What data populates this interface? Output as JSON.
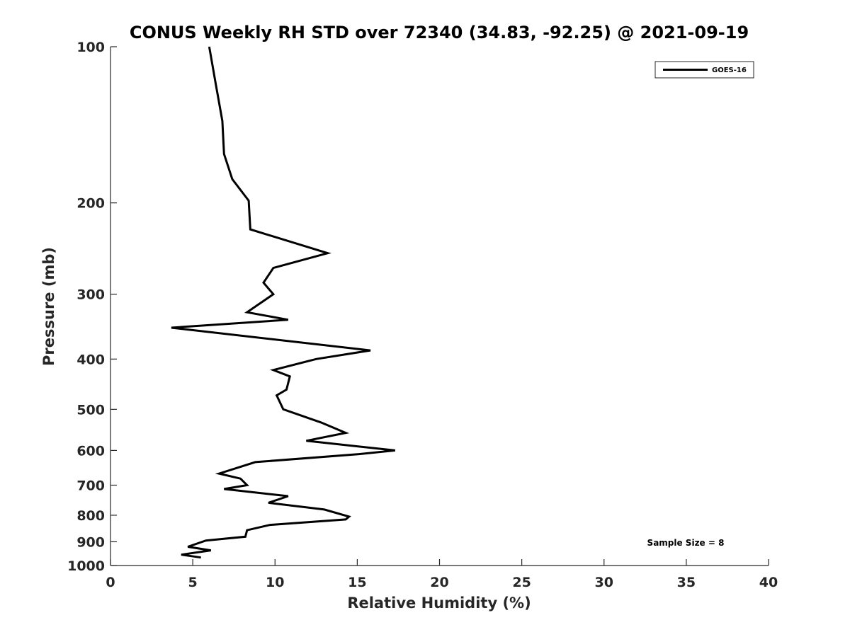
{
  "chart_data": {
    "type": "line",
    "title": "CONUS Weekly RH STD over 72340 (34.83, -92.25) @ 2021-09-19",
    "xlabel": "Relative Humidity (%)",
    "ylabel": "Pressure (mb)",
    "xlim": [
      0,
      40
    ],
    "ylim": [
      100,
      1000
    ],
    "y_scale": "log",
    "y_reversed": true,
    "grid": false,
    "x_ticks": [
      0,
      5,
      10,
      15,
      20,
      25,
      30,
      35,
      40
    ],
    "y_ticks": [
      100,
      200,
      300,
      400,
      500,
      600,
      700,
      800,
      900,
      1000
    ],
    "legend": {
      "position": "top-right",
      "entries": [
        "GOES-16"
      ]
    },
    "annotation": "Sample Size = 8",
    "series": [
      {
        "name": "GOES-16",
        "color": "#000000",
        "points": [
          [
            6.0,
            100
          ],
          [
            6.4,
            118
          ],
          [
            6.8,
            139
          ],
          [
            6.9,
            161
          ],
          [
            7.4,
            180
          ],
          [
            8.4,
            198
          ],
          [
            8.5,
            225
          ],
          [
            13.2,
            250
          ],
          [
            9.9,
            267
          ],
          [
            9.3,
            285
          ],
          [
            9.9,
            300
          ],
          [
            8.3,
            325
          ],
          [
            10.8,
            336
          ],
          [
            3.7,
            348
          ],
          [
            15.8,
            385
          ],
          [
            12.5,
            400
          ],
          [
            9.9,
            420
          ],
          [
            10.9,
            432
          ],
          [
            10.7,
            458
          ],
          [
            10.1,
            470
          ],
          [
            10.5,
            500
          ],
          [
            12.8,
            530
          ],
          [
            14.3,
            555
          ],
          [
            11.9,
            575
          ],
          [
            17.3,
            600
          ],
          [
            15.1,
            610
          ],
          [
            8.8,
            632
          ],
          [
            6.6,
            665
          ],
          [
            7.9,
            680
          ],
          [
            8.3,
            700
          ],
          [
            6.9,
            712
          ],
          [
            10.8,
            735
          ],
          [
            9.6,
            757
          ],
          [
            13.0,
            780
          ],
          [
            14.5,
            805
          ],
          [
            14.3,
            815
          ],
          [
            9.7,
            835
          ],
          [
            8.3,
            855
          ],
          [
            8.2,
            880
          ],
          [
            5.8,
            895
          ],
          [
            4.7,
            920
          ],
          [
            6.1,
            935
          ],
          [
            4.3,
            953
          ],
          [
            5.5,
            965
          ]
        ]
      }
    ]
  }
}
